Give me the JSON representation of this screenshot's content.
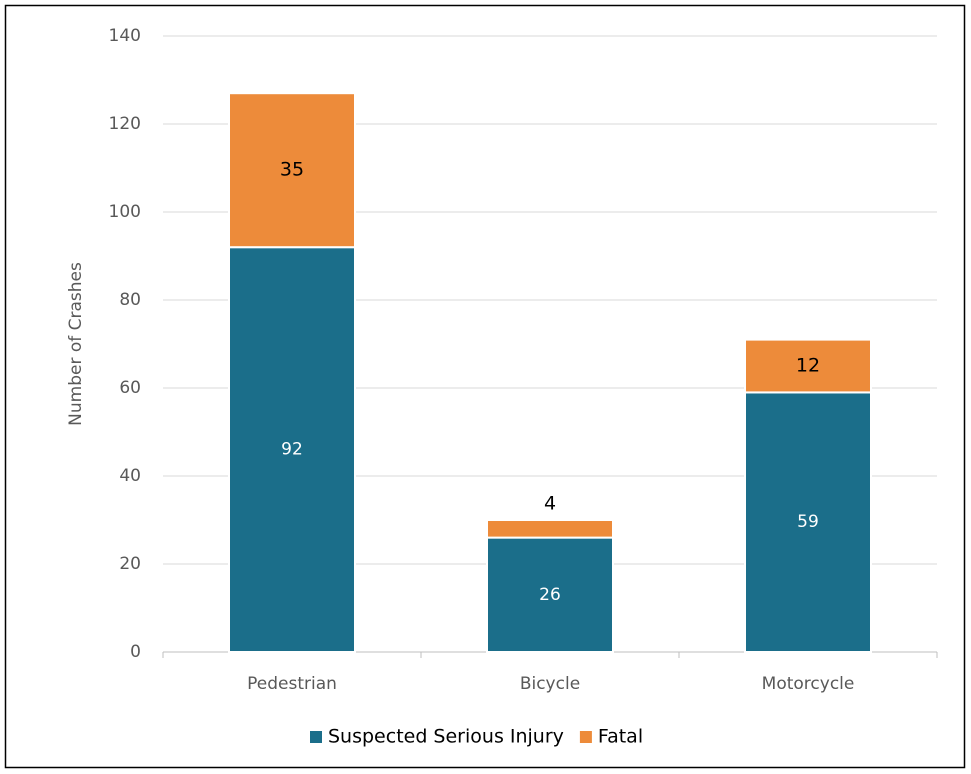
{
  "chart_data": {
    "type": "stacked-bar",
    "y_label": "Number of Crashes",
    "categories": [
      "Pedestrian",
      "Bicycle",
      "Motorcycle"
    ],
    "series": [
      {
        "name": "Suspected Serious Injury",
        "color": "#1b6e8a",
        "values": [
          92,
          26,
          59
        ]
      },
      {
        "name": "Fatal",
        "color": "#ed8b3a",
        "values": [
          35,
          4,
          12
        ]
      }
    ],
    "ylim": [
      0,
      140
    ],
    "yticks": [
      0,
      20,
      40,
      60,
      80,
      100,
      120,
      140
    ],
    "grid": true,
    "legend": "bottom"
  }
}
